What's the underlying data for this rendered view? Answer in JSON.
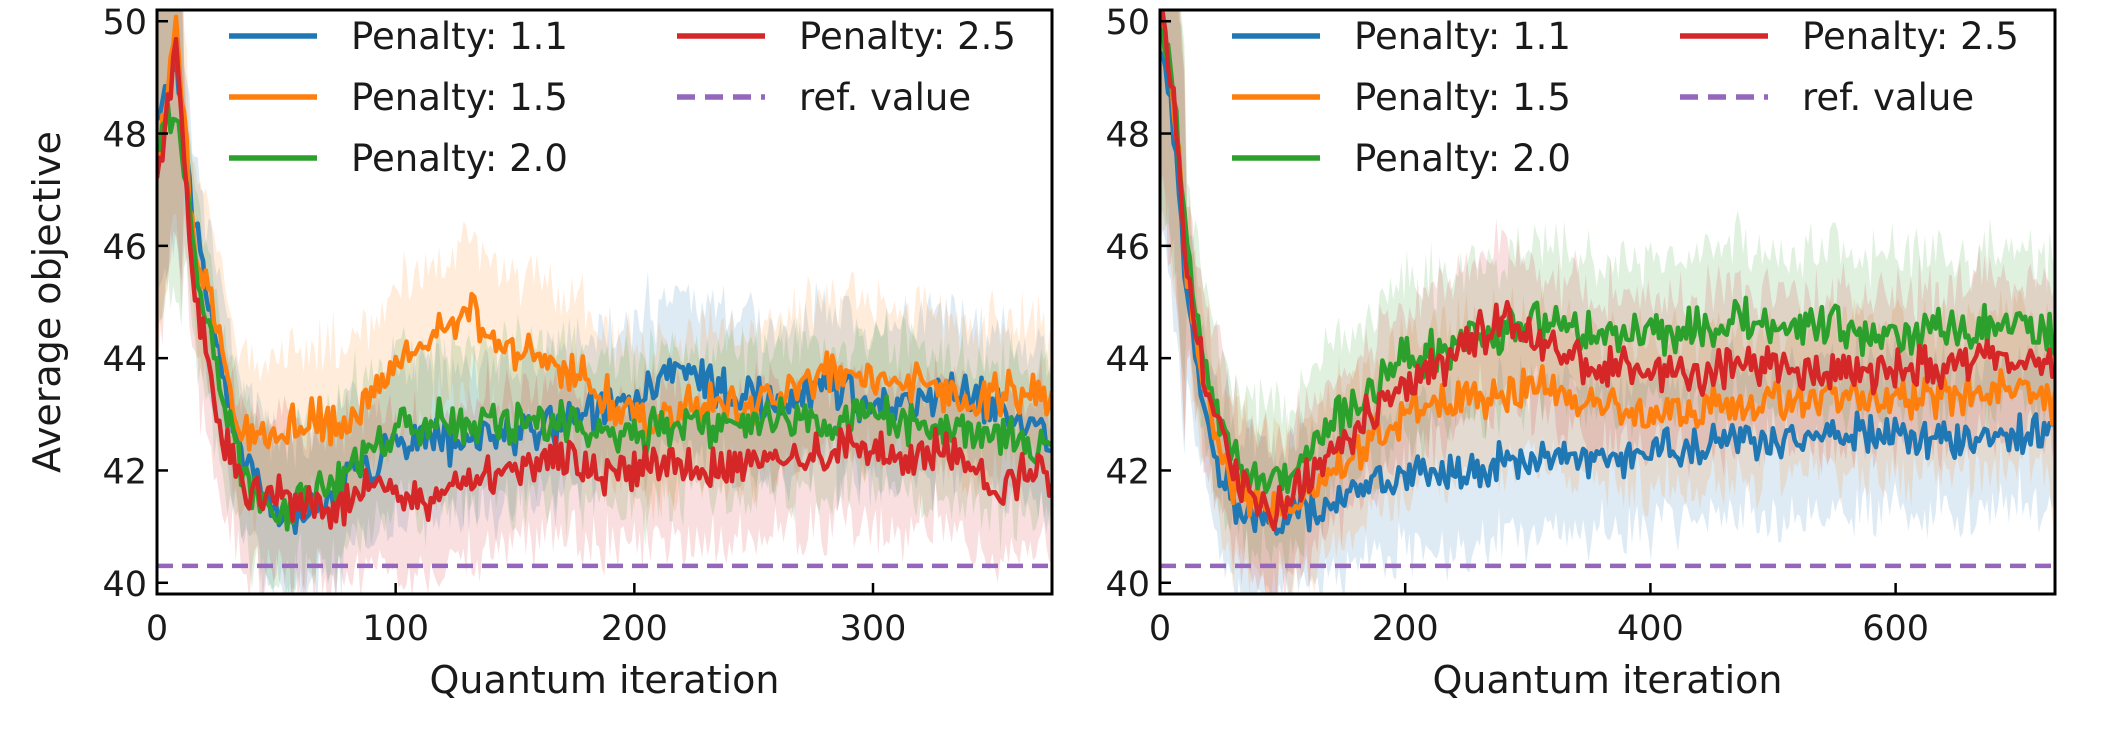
{
  "chart_data": [
    {
      "type": "line",
      "panel": "left",
      "xlabel": "Quantum iteration",
      "ylabel": "Average objective",
      "xlim": [
        0,
        375
      ],
      "ylim": [
        39.8,
        50.2
      ],
      "xticks": [
        0,
        100,
        200,
        300
      ],
      "yticks": [
        40,
        42,
        44,
        46,
        48,
        50
      ],
      "legend_position": "top",
      "reference": {
        "name": "ref. value",
        "value": 40.3,
        "color": "#9467bd"
      },
      "series": [
        {
          "name": "Penalty: 1.1",
          "color": "#1f77b4",
          "x": [
            0,
            8,
            15,
            25,
            35,
            45,
            55,
            65,
            75,
            85,
            100,
            120,
            140,
            160,
            180,
            200,
            220,
            240,
            260,
            280,
            300,
            320,
            340,
            360,
            375
          ],
          "y": [
            48.2,
            49.5,
            46.5,
            44.3,
            42.4,
            41.6,
            41.1,
            41.3,
            41.5,
            42.0,
            42.4,
            42.5,
            42.6,
            42.7,
            43.0,
            43.3,
            43.8,
            43.4,
            43.2,
            43.5,
            43.1,
            43.3,
            43.4,
            42.9,
            42.6
          ]
        },
        {
          "name": "Penalty: 1.5",
          "color": "#ff7f0e",
          "x": [
            0,
            8,
            15,
            25,
            35,
            45,
            55,
            65,
            75,
            85,
            100,
            120,
            130,
            140,
            160,
            180,
            200,
            220,
            240,
            260,
            280,
            300,
            320,
            340,
            360,
            375
          ],
          "y": [
            47.5,
            49.8,
            46.2,
            44.5,
            42.8,
            42.5,
            42.8,
            43.0,
            42.7,
            43.2,
            44.0,
            44.6,
            44.9,
            44.3,
            44.0,
            43.6,
            42.9,
            43.2,
            43.1,
            43.3,
            43.8,
            43.6,
            43.5,
            43.2,
            43.4,
            43.3
          ]
        },
        {
          "name": "Penalty: 2.0",
          "color": "#2ca02c",
          "x": [
            0,
            8,
            15,
            25,
            35,
            45,
            55,
            65,
            75,
            85,
            100,
            120,
            140,
            160,
            180,
            200,
            220,
            240,
            260,
            280,
            300,
            320,
            340,
            360,
            375
          ],
          "y": [
            47.8,
            48.5,
            46.0,
            43.8,
            41.9,
            41.5,
            41.3,
            41.6,
            41.8,
            42.2,
            42.8,
            42.9,
            42.8,
            42.9,
            42.8,
            42.6,
            42.8,
            42.8,
            43.0,
            42.9,
            43.0,
            42.7,
            42.7,
            42.6,
            42.5
          ]
        },
        {
          "name": "Penalty: 2.5",
          "color": "#d62728",
          "x": [
            0,
            8,
            15,
            25,
            35,
            45,
            55,
            65,
            75,
            85,
            100,
            115,
            130,
            150,
            170,
            190,
            210,
            230,
            250,
            270,
            290,
            310,
            330,
            350,
            365,
            375
          ],
          "y": [
            47.0,
            49.6,
            45.5,
            43.0,
            41.8,
            41.5,
            41.5,
            41.3,
            41.3,
            41.7,
            41.7,
            41.4,
            41.8,
            42.1,
            42.3,
            41.9,
            42.1,
            42.0,
            42.1,
            42.2,
            42.5,
            42.2,
            42.4,
            41.7,
            42.0,
            42.0
          ]
        }
      ]
    },
    {
      "type": "line",
      "panel": "right",
      "xlabel": "Quantum iteration",
      "ylabel": "",
      "xlim": [
        0,
        730
      ],
      "ylim": [
        39.8,
        50.2
      ],
      "xticks": [
        0,
        200,
        400,
        600
      ],
      "yticks": [
        40,
        42,
        44,
        46,
        48,
        50
      ],
      "legend_position": "top",
      "reference": {
        "name": "ref. value",
        "value": 40.3,
        "color": "#9467bd"
      },
      "series": [
        {
          "name": "Penalty: 1.1",
          "color": "#1f77b4",
          "x": [
            0,
            10,
            20,
            35,
            50,
            70,
            90,
            110,
            140,
            170,
            200,
            250,
            300,
            350,
            400,
            450,
            500,
            550,
            600,
            650,
            700,
            730
          ],
          "y": [
            49.5,
            48.5,
            45.5,
            43.0,
            41.8,
            41.2,
            41.0,
            41.2,
            41.5,
            41.7,
            41.9,
            42.0,
            42.2,
            42.3,
            42.3,
            42.5,
            42.5,
            42.7,
            42.6,
            42.6,
            42.6,
            42.8
          ]
        },
        {
          "name": "Penalty: 1.5",
          "color": "#ff7f0e",
          "x": [
            0,
            10,
            20,
            35,
            50,
            70,
            90,
            110,
            140,
            170,
            200,
            250,
            300,
            350,
            400,
            450,
            500,
            550,
            600,
            650,
            700,
            730
          ],
          "y": [
            50.0,
            49.0,
            46.0,
            43.5,
            42.2,
            41.5,
            41.2,
            41.3,
            42.0,
            42.5,
            43.0,
            43.3,
            43.5,
            43.3,
            43.0,
            43.1,
            43.2,
            43.3,
            43.3,
            43.4,
            43.5,
            43.2
          ]
        },
        {
          "name": "Penalty: 2.0",
          "color": "#2ca02c",
          "x": [
            0,
            10,
            20,
            35,
            50,
            70,
            90,
            110,
            140,
            170,
            200,
            250,
            300,
            350,
            400,
            450,
            500,
            550,
            600,
            650,
            700,
            730
          ],
          "y": [
            50.0,
            49.2,
            46.2,
            44.0,
            42.8,
            42.0,
            41.8,
            42.0,
            42.8,
            43.5,
            44.0,
            44.3,
            44.6,
            44.5,
            44.4,
            44.6,
            44.7,
            44.5,
            44.4,
            44.5,
            44.6,
            44.4
          ]
        },
        {
          "name": "Penalty: 2.5",
          "color": "#d62728",
          "x": [
            0,
            10,
            20,
            35,
            50,
            70,
            90,
            110,
            140,
            170,
            200,
            250,
            280,
            300,
            350,
            400,
            450,
            500,
            550,
            600,
            650,
            700,
            730
          ],
          "y": [
            50.0,
            49.0,
            46.0,
            43.8,
            42.5,
            41.6,
            41.3,
            41.6,
            42.3,
            43.0,
            43.5,
            44.2,
            44.8,
            44.3,
            43.9,
            43.7,
            43.8,
            43.9,
            43.8,
            43.8,
            43.9,
            44.0,
            43.8
          ]
        }
      ]
    }
  ]
}
